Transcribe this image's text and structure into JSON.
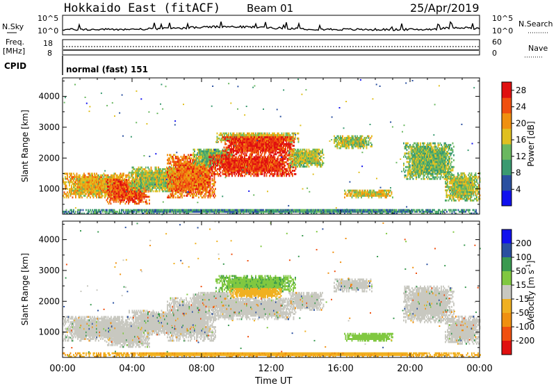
{
  "header": {
    "station": "Hokkaido East (fitACF)",
    "beam": "Beam 01",
    "date": "25/Apr/2019"
  },
  "strip_labels": {
    "nsky": "N.Sky",
    "nsky_ticks": [
      "10^5",
      "10^0"
    ],
    "nsearch_ticks": [
      "10^5",
      "10^0"
    ],
    "nsearch": "N.Search",
    "freq_label_1": "Freq.",
    "freq_label_2": "[MHz]",
    "freq_ticks": [
      "18",
      "8"
    ],
    "nave_ticks": [
      "60",
      "0"
    ],
    "nave": "Nave",
    "cpid": "CPID",
    "cpid_mode": "normal (fast) 151"
  },
  "colors": {
    "power_scale": [
      "#1010ee",
      "#2a50a0",
      "#3a9a70",
      "#6ab860",
      "#e0c020",
      "#f09010",
      "#f05010",
      "#e01010"
    ],
    "velocity_scale": [
      "#e01010",
      "#f05010",
      "#f09010",
      "#f0b020",
      "#c8c8c0",
      "#80c840",
      "#3a9a50",
      "#2a50a0",
      "#1010ee"
    ],
    "ground_scatter": "#c8c8c0"
  },
  "chart_data": [
    {
      "type": "heatmap",
      "name": "power",
      "xlabel": "",
      "ylabel": "Slant Range [km]",
      "xlim": [
        "00:00",
        "24:00"
      ],
      "ylim": [
        180,
        4600
      ],
      "x_ticks": [
        "00:00",
        "04:00",
        "08:00",
        "12:00",
        "16:00",
        "20:00",
        "00:00"
      ],
      "y_ticks": [
        1000,
        2000,
        3000,
        4000
      ],
      "colorbar_label": "Power [dB]",
      "colorbar_ticks": [
        4,
        8,
        12,
        16,
        20,
        24,
        28
      ],
      "colorbar_range": [
        0,
        30
      ],
      "regions": [
        {
          "t0": 0.0,
          "t1": 3.8,
          "r0": 700,
          "r1": 1500,
          "level": 20
        },
        {
          "t0": 2.5,
          "t1": 5.0,
          "r0": 500,
          "r1": 1300,
          "level": 26
        },
        {
          "t0": 3.8,
          "t1": 7.0,
          "r0": 900,
          "r1": 1700,
          "level": 16
        },
        {
          "t0": 6.0,
          "t1": 8.8,
          "r0": 700,
          "r1": 2100,
          "level": 24
        },
        {
          "t0": 7.5,
          "t1": 9.8,
          "r0": 1700,
          "r1": 2300,
          "level": 14
        },
        {
          "t0": 8.8,
          "t1": 13.6,
          "r0": 2500,
          "r1": 2800,
          "level": 18
        },
        {
          "t0": 9.2,
          "t1": 13.4,
          "r0": 2100,
          "r1": 2700,
          "level": 28
        },
        {
          "t0": 8.4,
          "t1": 13.4,
          "r0": 1400,
          "r1": 2100,
          "level": 28
        },
        {
          "t0": 13.0,
          "t1": 15.0,
          "r0": 1700,
          "r1": 2300,
          "level": 16
        },
        {
          "t0": 15.6,
          "t1": 17.8,
          "r0": 2300,
          "r1": 2700,
          "level": 16
        },
        {
          "t0": 16.2,
          "t1": 19.0,
          "r0": 700,
          "r1": 950,
          "level": 18
        },
        {
          "t0": 19.6,
          "t1": 22.5,
          "r0": 1300,
          "r1": 2500,
          "level": 14
        },
        {
          "t0": 22.0,
          "t1": 24.0,
          "r0": 600,
          "r1": 1500,
          "level": 16
        },
        {
          "t0": 0.0,
          "t1": 24.0,
          "r0": 180,
          "r1": 320,
          "level": 10
        }
      ]
    },
    {
      "type": "heatmap",
      "name": "velocity",
      "xlabel": "Time UT",
      "ylabel": "Slant Range [km]",
      "xlim": [
        "00:00",
        "24:00"
      ],
      "ylim": [
        180,
        4600
      ],
      "x_ticks": [
        "00:00",
        "04:00",
        "08:00",
        "12:00",
        "16:00",
        "20:00",
        "00:00"
      ],
      "y_ticks": [
        1000,
        2000,
        3000,
        4000
      ],
      "colorbar_label": "Velocity [m s^-1]",
      "colorbar_ticks": [
        200,
        100,
        50,
        15,
        -15,
        -50,
        -100,
        -200
      ],
      "regions": [
        {
          "t0": 0.0,
          "t1": 3.8,
          "r0": 700,
          "r1": 1500,
          "level": 0
        },
        {
          "t0": 2.5,
          "t1": 5.0,
          "r0": 500,
          "r1": 1300,
          "level": 0
        },
        {
          "t0": 3.8,
          "t1": 7.0,
          "r0": 900,
          "r1": 1700,
          "level": 0
        },
        {
          "t0": 6.0,
          "t1": 8.8,
          "r0": 700,
          "r1": 2100,
          "level": 0
        },
        {
          "t0": 7.5,
          "t1": 9.8,
          "r0": 1700,
          "r1": 2300,
          "level": 0
        },
        {
          "t0": 8.8,
          "t1": 13.4,
          "r0": 2300,
          "r1": 2800,
          "level": 40
        },
        {
          "t0": 9.6,
          "t1": 12.6,
          "r0": 2100,
          "r1": 2400,
          "level": -30
        },
        {
          "t0": 8.4,
          "t1": 13.4,
          "r0": 1400,
          "r1": 2100,
          "level": 0
        },
        {
          "t0": 13.0,
          "t1": 15.0,
          "r0": 1700,
          "r1": 2300,
          "level": 0
        },
        {
          "t0": 15.6,
          "t1": 17.8,
          "r0": 2300,
          "r1": 2700,
          "level": 0
        },
        {
          "t0": 16.2,
          "t1": 19.0,
          "r0": 700,
          "r1": 950,
          "level": 30
        },
        {
          "t0": 19.6,
          "t1": 22.5,
          "r0": 1300,
          "r1": 2500,
          "level": 0
        },
        {
          "t0": 22.0,
          "t1": 24.0,
          "r0": 600,
          "r1": 1500,
          "level": 0
        },
        {
          "t0": 0.0,
          "t1": 24.0,
          "r0": 180,
          "r1": 320,
          "level": -40
        }
      ]
    }
  ]
}
